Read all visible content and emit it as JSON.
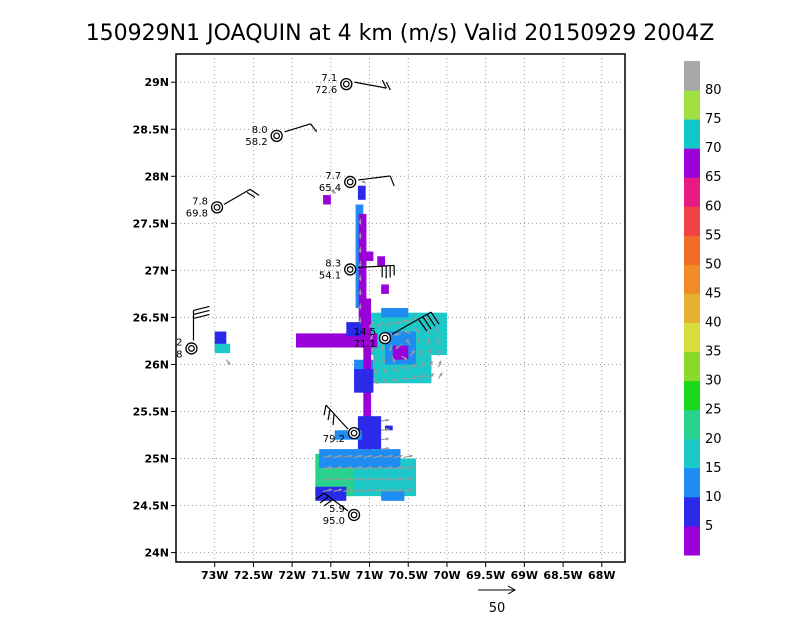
{
  "chart_data": {
    "type": "scatter",
    "title": "150929N1 JOAQUIN at 4 km (m/s) Valid 20150929 2004Z",
    "x_ticks": [
      {
        "value": -73.0,
        "label": "73W"
      },
      {
        "value": -72.5,
        "label": "72.5W"
      },
      {
        "value": -72.0,
        "label": "72W"
      },
      {
        "value": -71.5,
        "label": "71.5W"
      },
      {
        "value": -71.0,
        "label": "71W"
      },
      {
        "value": -70.5,
        "label": "70.5W"
      },
      {
        "value": -70.0,
        "label": "70W"
      },
      {
        "value": -69.5,
        "label": "69.5W"
      },
      {
        "value": -69.0,
        "label": "69W"
      },
      {
        "value": -68.5,
        "label": "68.5W"
      },
      {
        "value": -68.0,
        "label": "68W"
      }
    ],
    "y_ticks": [
      {
        "value": 24.0,
        "label": "24N"
      },
      {
        "value": 24.5,
        "label": "24.5N"
      },
      {
        "value": 25.0,
        "label": "25N"
      },
      {
        "value": 25.5,
        "label": "25.5N"
      },
      {
        "value": 26.0,
        "label": "26N"
      },
      {
        "value": 26.5,
        "label": "26.5N"
      },
      {
        "value": 27.0,
        "label": "27N"
      },
      {
        "value": 27.5,
        "label": "27.5N"
      },
      {
        "value": 28.0,
        "label": "28N"
      },
      {
        "value": 28.5,
        "label": "28.5N"
      },
      {
        "value": 29.0,
        "label": "29N"
      }
    ],
    "xlim": [
      -73.5,
      -67.7
    ],
    "ylim": [
      23.9,
      29.3
    ],
    "grid": true,
    "colorbar": {
      "levels": [
        {
          "label": "5",
          "color": "#9a00d8"
        },
        {
          "label": "10",
          "color": "#2a2ae8"
        },
        {
          "label": "15",
          "color": "#1e8cf0"
        },
        {
          "label": "20",
          "color": "#1cc8c8"
        },
        {
          "label": "25",
          "color": "#28d28c"
        },
        {
          "label": "30",
          "color": "#18d818"
        },
        {
          "label": "35",
          "color": "#8cd828"
        },
        {
          "label": "40",
          "color": "#d8dc3c"
        },
        {
          "label": "45",
          "color": "#e8b030"
        },
        {
          "label": "50",
          "color": "#f08c28"
        },
        {
          "label": "55",
          "color": "#f06c28"
        },
        {
          "label": "60",
          "color": "#f04444"
        },
        {
          "label": "65",
          "color": "#e81c80"
        },
        {
          "label": "70",
          "color": "#9a00d8"
        },
        {
          "label": "75",
          "color": "#10c8c8"
        },
        {
          "label": "80",
          "color": "#a0e040"
        },
        {
          "label": "",
          "color": "#a8a8a8"
        }
      ]
    },
    "observations": [
      {
        "lon": -71.3,
        "lat": 28.98,
        "wind": "7.1",
        "p": "72.6"
      },
      {
        "lon": -72.2,
        "lat": 28.43,
        "wind": "8.0",
        "p": "58.2"
      },
      {
        "lon": -71.25,
        "lat": 27.94,
        "wind": "7.7",
        "p": "65.4"
      },
      {
        "lon": -72.97,
        "lat": 27.67,
        "wind": "7.8",
        "p": "69.8"
      },
      {
        "lon": -71.25,
        "lat": 27.01,
        "wind": "8.3",
        "p": "54.1"
      },
      {
        "lon": -73.3,
        "lat": 26.17,
        "wind": "2",
        "p": "8"
      },
      {
        "lon": -70.8,
        "lat": 26.28,
        "wind": "14.5",
        "p": "71.1"
      },
      {
        "lon": -71.2,
        "lat": 25.27,
        "wind": "",
        "p": "79.2"
      },
      {
        "lon": -71.2,
        "lat": 24.4,
        "wind": "5.9",
        "p": "95.0"
      }
    ],
    "reference_vector_label": "50"
  }
}
